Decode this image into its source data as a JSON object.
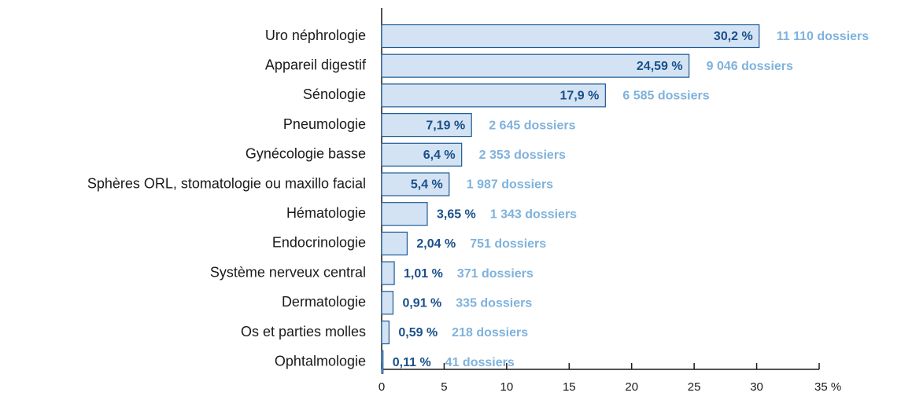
{
  "chart_data": {
    "type": "bar",
    "orientation": "horizontal",
    "categories": [
      "Uro néphrologie",
      "Appareil digestif",
      "Sénologie",
      "Pneumologie",
      "Gynécologie basse",
      "Sphères ORL, stomatologie ou maxillo facial",
      "Hématologie",
      "Endocrinologie",
      "Système nerveux central",
      "Dermatologie",
      "Os et parties molles",
      "Ophtalmologie"
    ],
    "values": [
      30.2,
      24.59,
      17.9,
      7.19,
      6.4,
      5.4,
      3.65,
      2.04,
      1.01,
      0.91,
      0.59,
      0.11
    ],
    "value_labels": [
      "30,2 %",
      "24,59 %",
      "17,9 %",
      "7,19 %",
      "6,4 %",
      "5,4 %",
      "3,65 %",
      "2,04 %",
      "1,01 %",
      "0,91 %",
      "0,59 %",
      "0,11 %"
    ],
    "count_labels": [
      "11 110 dossiers",
      "9 046 dossiers",
      "6 585 dossiers",
      "2 645 dossiers",
      "2 353 dossiers",
      "1 987 dossiers",
      "1 343 dossiers",
      "751 dossiers",
      "371 dossiers",
      "335 dossiers",
      "218 dossiers",
      "41 dossiers"
    ],
    "color": "#d3e3f4",
    "edge_color": "#1f5a96",
    "value_label_color": "#1a4f8a",
    "count_label_color": "#7fb2dc",
    "xlim": [
      0,
      35
    ],
    "xticks": [
      0,
      5,
      10,
      15,
      20,
      25,
      30,
      {
        "value": 35,
        "label": "35 %"
      }
    ]
  }
}
